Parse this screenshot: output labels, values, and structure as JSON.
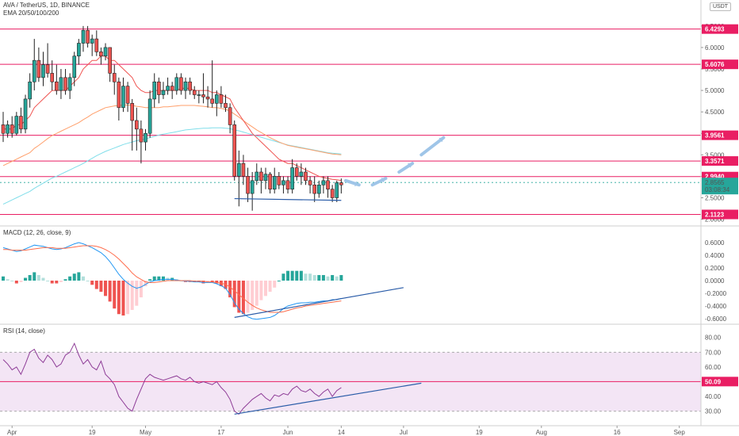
{
  "header": {
    "symbol_line": "AVA / TetherUS, 1D, BINANCE",
    "ema_line": "EMA 20/50/100/200",
    "currency": "USDT"
  },
  "macd_title": "MACD (12, 26, close, 9)",
  "rsi_title": "RSI (14, close)",
  "x_axis": {
    "labels": [
      "Apr",
      "19",
      "May",
      "17",
      "Jun",
      "14",
      "Jul",
      "19",
      "Aug",
      "16",
      "Sep"
    ],
    "day_index": [
      2,
      20,
      32,
      49,
      64,
      76,
      90,
      107,
      121,
      138,
      152
    ]
  },
  "colors": {
    "up": "#26a69a",
    "down": "#ef5350",
    "level": "#e91e63",
    "macd": "#2196f3",
    "signal": "#ff6d4d",
    "ema_orange": "#ff9f6b",
    "ema_cyan": "#80deea",
    "trend": "#2a5ca8",
    "arrow": "#9fc5e8",
    "rsi": "#8e3c97"
  },
  "chart_data": [
    {
      "type": "candlestick",
      "title": "AVA / TetherUS, 1D, BINANCE",
      "currency": "USDT",
      "ylim": [
        1.9,
        6.7
      ],
      "y_ticks": [
        "6.5000",
        "6.0000",
        "5.5000",
        "5.0000",
        "4.5000",
        "4.0000",
        "3.5000",
        "3.0000",
        "2.5000",
        "2.0000"
      ],
      "levels": [
        {
          "value": 6.4293,
          "label": "6.4293"
        },
        {
          "value": 5.6076,
          "label": "5.6076"
        },
        {
          "value": 3.9561,
          "label": "3.9561"
        },
        {
          "value": 3.3571,
          "label": "3.3571"
        },
        {
          "value": 2.994,
          "label": "2.9940"
        },
        {
          "value": 2.1123,
          "label": "2.1123"
        }
      ],
      "current_price": {
        "value": 2.8565,
        "label": "2.8565",
        "countdown": "03:08:34"
      },
      "ohlc": [
        [
          4.2,
          4.5,
          3.8,
          4.0
        ],
        [
          4.0,
          4.3,
          3.9,
          4.2
        ],
        [
          4.2,
          4.4,
          3.9,
          4.0
        ],
        [
          4.0,
          4.5,
          3.95,
          4.4
        ],
        [
          4.4,
          4.6,
          4.0,
          4.1
        ],
        [
          4.1,
          4.9,
          4.0,
          4.8
        ],
        [
          4.8,
          5.4,
          4.6,
          5.2
        ],
        [
          5.2,
          6.2,
          5.0,
          5.7
        ],
        [
          5.7,
          6.0,
          5.2,
          5.3
        ],
        [
          5.3,
          5.9,
          5.1,
          5.6
        ],
        [
          5.6,
          6.1,
          5.3,
          5.4
        ],
        [
          5.4,
          5.7,
          5.0,
          5.2
        ],
        [
          5.2,
          5.6,
          4.9,
          5.0
        ],
        [
          5.0,
          5.5,
          4.8,
          5.3
        ],
        [
          5.3,
          5.5,
          4.9,
          5.0
        ],
        [
          5.0,
          5.4,
          4.8,
          5.3
        ],
        [
          5.3,
          5.9,
          5.1,
          5.8
        ],
        [
          5.8,
          6.2,
          5.6,
          6.1
        ],
        [
          6.1,
          6.5,
          5.9,
          6.4
        ],
        [
          6.4,
          6.5,
          6.0,
          6.1
        ],
        [
          6.1,
          6.3,
          5.8,
          6.2
        ],
        [
          6.2,
          6.4,
          5.8,
          5.9
        ],
        [
          5.9,
          6.0,
          5.6,
          5.8
        ],
        [
          5.8,
          6.1,
          5.7,
          6.0
        ],
        [
          6.0,
          6.0,
          5.2,
          5.4
        ],
        [
          5.4,
          5.6,
          4.9,
          5.2
        ],
        [
          5.2,
          5.3,
          4.3,
          4.6
        ],
        [
          4.6,
          5.3,
          4.5,
          5.1
        ],
        [
          5.1,
          5.2,
          4.5,
          4.7
        ],
        [
          4.7,
          4.8,
          3.6,
          4.3
        ],
        [
          4.3,
          4.6,
          3.6,
          4.1
        ],
        [
          4.1,
          4.3,
          3.3,
          3.8
        ],
        [
          3.8,
          4.1,
          3.6,
          4.0
        ],
        [
          4.0,
          5.0,
          3.9,
          4.8
        ],
        [
          4.8,
          5.4,
          4.6,
          5.2
        ],
        [
          5.2,
          5.3,
          4.7,
          4.9
        ],
        [
          4.9,
          5.2,
          4.8,
          5.0
        ],
        [
          5.0,
          5.3,
          4.9,
          5.1
        ],
        [
          5.1,
          5.2,
          4.8,
          5.0
        ],
        [
          5.0,
          5.4,
          4.9,
          5.3
        ],
        [
          5.3,
          5.4,
          4.9,
          5.0
        ],
        [
          5.0,
          5.3,
          4.8,
          5.2
        ],
        [
          5.2,
          5.3,
          4.9,
          5.0
        ],
        [
          5.0,
          5.1,
          4.8,
          4.9
        ],
        [
          4.9,
          5.0,
          4.7,
          4.9
        ],
        [
          4.9,
          5.4,
          4.7,
          4.85
        ],
        [
          4.85,
          5.1,
          4.6,
          4.8
        ],
        [
          4.8,
          5.7,
          4.6,
          4.7
        ],
        [
          4.7,
          5.0,
          4.4,
          4.9
        ],
        [
          4.9,
          5.1,
          4.6,
          4.7
        ],
        [
          4.7,
          4.9,
          4.5,
          4.6
        ],
        [
          4.6,
          4.7,
          4.0,
          4.2
        ],
        [
          4.2,
          4.3,
          2.9,
          3.0
        ],
        [
          3.0,
          3.6,
          2.3,
          3.3
        ],
        [
          3.3,
          3.5,
          2.8,
          3.0
        ],
        [
          3.0,
          3.2,
          2.4,
          2.6
        ],
        [
          2.6,
          3.1,
          2.2,
          2.9
        ],
        [
          2.9,
          3.3,
          2.8,
          3.1
        ],
        [
          3.1,
          3.2,
          2.6,
          2.9
        ],
        [
          2.9,
          3.2,
          2.7,
          3.05
        ],
        [
          3.05,
          3.1,
          2.6,
          2.7
        ],
        [
          2.7,
          3.2,
          2.6,
          3.0
        ],
        [
          3.0,
          3.1,
          2.7,
          2.8
        ],
        [
          2.8,
          3.0,
          2.6,
          2.9
        ],
        [
          2.9,
          3.0,
          2.6,
          2.7
        ],
        [
          2.7,
          3.4,
          2.6,
          3.2
        ],
        [
          3.2,
          3.3,
          2.9,
          3.0
        ],
        [
          3.0,
          3.3,
          2.8,
          3.1
        ],
        [
          3.1,
          3.2,
          2.8,
          2.9
        ],
        [
          2.9,
          3.0,
          2.6,
          2.8
        ],
        [
          2.8,
          3.0,
          2.4,
          2.6
        ],
        [
          2.6,
          2.9,
          2.5,
          2.8
        ],
        [
          2.8,
          3.0,
          2.6,
          2.9
        ],
        [
          2.9,
          3.0,
          2.5,
          2.7
        ],
        [
          2.7,
          2.8,
          2.4,
          2.5
        ],
        [
          2.5,
          2.9,
          2.4,
          2.85
        ],
        [
          2.85,
          2.95,
          2.6,
          2.8
        ]
      ],
      "ema_fast": [
        4.1,
        4.1,
        4.1,
        4.2,
        4.2,
        4.3,
        4.4,
        4.6,
        4.7,
        4.8,
        4.9,
        5.0,
        5.0,
        5.0,
        5.0,
        5.1,
        5.2,
        5.3,
        5.5,
        5.6,
        5.7,
        5.7,
        5.8,
        5.8,
        5.7,
        5.7,
        5.6,
        5.5,
        5.4,
        5.3,
        5.1,
        5.0,
        4.95,
        4.95,
        5.0,
        5.0,
        5.0,
        5.0,
        5.0,
        5.0,
        5.05,
        5.05,
        5.05,
        5.0,
        5.0,
        5.0,
        5.0,
        4.95,
        4.95,
        4.9,
        4.85,
        4.8,
        4.6,
        4.45,
        4.3,
        4.15,
        4.0,
        3.9,
        3.8,
        3.7,
        3.6,
        3.5,
        3.4,
        3.35,
        3.3,
        3.3,
        3.25,
        3.2,
        3.15,
        3.1,
        3.05,
        3.0,
        2.97,
        2.95,
        2.93,
        2.92,
        2.9
      ],
      "ema_mid": [
        3.25,
        3.3,
        3.35,
        3.4,
        3.45,
        3.5,
        3.55,
        3.65,
        3.72,
        3.8,
        3.88,
        3.95,
        4.0,
        4.05,
        4.1,
        4.15,
        4.2,
        4.25,
        4.32,
        4.38,
        4.45,
        4.5,
        4.55,
        4.6,
        4.62,
        4.64,
        4.65,
        4.66,
        4.66,
        4.65,
        4.63,
        4.62,
        4.6,
        4.6,
        4.6,
        4.6,
        4.62,
        4.62,
        4.63,
        4.64,
        4.65,
        4.65,
        4.65,
        4.65,
        4.64,
        4.63,
        4.62,
        4.6,
        4.6,
        4.58,
        4.56,
        4.52,
        4.45,
        4.38,
        4.3,
        4.22,
        4.15,
        4.08,
        4.02,
        3.96,
        3.9,
        3.85,
        3.8,
        3.76,
        3.72,
        3.7,
        3.68,
        3.66,
        3.64,
        3.62,
        3.6,
        3.58,
        3.56,
        3.54,
        3.52,
        3.51,
        3.5
      ],
      "ema_slow": [
        2.35,
        2.4,
        2.45,
        2.5,
        2.55,
        2.6,
        2.65,
        2.72,
        2.78,
        2.84,
        2.9,
        2.96,
        3.0,
        3.05,
        3.1,
        3.15,
        3.2,
        3.25,
        3.3,
        3.36,
        3.42,
        3.48,
        3.53,
        3.58,
        3.62,
        3.66,
        3.7,
        3.74,
        3.77,
        3.8,
        3.83,
        3.85,
        3.87,
        3.9,
        3.93,
        3.96,
        3.98,
        4.0,
        4.02,
        4.04,
        4.06,
        4.08,
        4.09,
        4.1,
        4.11,
        4.12,
        4.12,
        4.13,
        4.13,
        4.13,
        4.12,
        4.11,
        4.08,
        4.06,
        4.03,
        4.0,
        3.97,
        3.94,
        3.91,
        3.88,
        3.85,
        3.82,
        3.79,
        3.76,
        3.73,
        3.71,
        3.69,
        3.67,
        3.65,
        3.63,
        3.61,
        3.59,
        3.57,
        3.55,
        3.54,
        3.53,
        3.52
      ],
      "trendline": {
        "from": [
          52,
          2.48
        ],
        "to": [
          76,
          2.44
        ]
      },
      "projection_arrows": [
        [
          77,
          2.9,
          80,
          2.8
        ],
        [
          83,
          2.8,
          86,
          2.95
        ],
        [
          89,
          3.1,
          92,
          3.3
        ],
        [
          94,
          3.5,
          99,
          3.9
        ]
      ]
    },
    {
      "type": "line",
      "title": "MACD (12, 26, close, 9)",
      "ylim": [
        -0.7,
        0.7
      ],
      "y_ticks": [
        "0.6000",
        "0.4000",
        "0.2000",
        "0.0000",
        "-0.2000",
        "-0.4000",
        "-0.6000"
      ],
      "series": [
        {
          "name": "MACD",
          "values": [
            0.52,
            0.5,
            0.48,
            0.46,
            0.47,
            0.5,
            0.53,
            0.56,
            0.55,
            0.54,
            0.52,
            0.5,
            0.49,
            0.5,
            0.52,
            0.55,
            0.58,
            0.6,
            0.58,
            0.55,
            0.52,
            0.48,
            0.44,
            0.38,
            0.3,
            0.2,
            0.1,
            0.02,
            -0.04,
            -0.09,
            -0.12,
            -0.1,
            -0.06,
            -0.02,
            0.0,
            0.01,
            0.02,
            0.02,
            0.02,
            0.01,
            0.0,
            -0.01,
            -0.01,
            -0.02,
            -0.02,
            -0.03,
            -0.03,
            -0.03,
            -0.05,
            -0.08,
            -0.12,
            -0.22,
            -0.35,
            -0.45,
            -0.52,
            -0.57,
            -0.6,
            -0.61,
            -0.6,
            -0.59,
            -0.58,
            -0.55,
            -0.5,
            -0.44,
            -0.4,
            -0.38,
            -0.36,
            -0.35,
            -0.35,
            -0.34,
            -0.34,
            -0.33,
            -0.32,
            -0.32,
            -0.3,
            -0.3,
            -0.28
          ]
        },
        {
          "name": "Signal",
          "values": [
            0.49,
            0.49,
            0.48,
            0.48,
            0.48,
            0.48,
            0.49,
            0.5,
            0.51,
            0.52,
            0.52,
            0.52,
            0.51,
            0.51,
            0.51,
            0.52,
            0.53,
            0.54,
            0.55,
            0.55,
            0.55,
            0.54,
            0.52,
            0.49,
            0.45,
            0.4,
            0.34,
            0.27,
            0.2,
            0.12,
            0.06,
            0.02,
            -0.02,
            -0.03,
            -0.03,
            -0.02,
            -0.01,
            0.0,
            0.0,
            0.0,
            0.0,
            0.0,
            0.0,
            -0.01,
            -0.01,
            -0.01,
            -0.02,
            -0.02,
            -0.03,
            -0.04,
            -0.06,
            -0.1,
            -0.16,
            -0.22,
            -0.28,
            -0.34,
            -0.39,
            -0.43,
            -0.46,
            -0.48,
            -0.5,
            -0.5,
            -0.5,
            -0.49,
            -0.47,
            -0.45,
            -0.43,
            -0.42,
            -0.4,
            -0.39,
            -0.38,
            -0.37,
            -0.36,
            -0.35,
            -0.34,
            -0.33,
            -0.32
          ]
        }
      ],
      "trendline": {
        "from": [
          52,
          -0.58
        ],
        "to": [
          90,
          -0.11
        ]
      }
    },
    {
      "type": "line",
      "title": "RSI (14, close)",
      "ylim": [
        25,
        82
      ],
      "y_ticks": [
        "80.00",
        "70.00",
        "60.00",
        "40.00",
        "30.00"
      ],
      "band": [
        30,
        70
      ],
      "level": {
        "value": 50.09,
        "label": "50.09"
      },
      "series": [
        {
          "name": "RSI",
          "values": [
            65,
            62,
            58,
            60,
            55,
            62,
            70,
            72,
            66,
            63,
            68,
            65,
            60,
            62,
            68,
            70,
            76,
            68,
            62,
            65,
            60,
            58,
            64,
            55,
            52,
            48,
            40,
            36,
            32,
            30,
            38,
            45,
            52,
            55,
            53,
            52,
            51,
            52,
            53,
            54,
            52,
            51,
            53,
            50,
            49,
            50,
            49,
            48,
            50,
            46,
            43,
            38,
            30,
            28,
            32,
            35,
            38,
            40,
            42,
            39,
            37,
            41,
            40,
            42,
            41,
            45,
            47,
            44,
            43,
            45,
            42,
            40,
            43,
            45,
            40,
            44,
            46
          ]
        }
      ],
      "trendline": {
        "from": [
          52,
          28
        ],
        "to": [
          94,
          49
        ]
      }
    }
  ]
}
